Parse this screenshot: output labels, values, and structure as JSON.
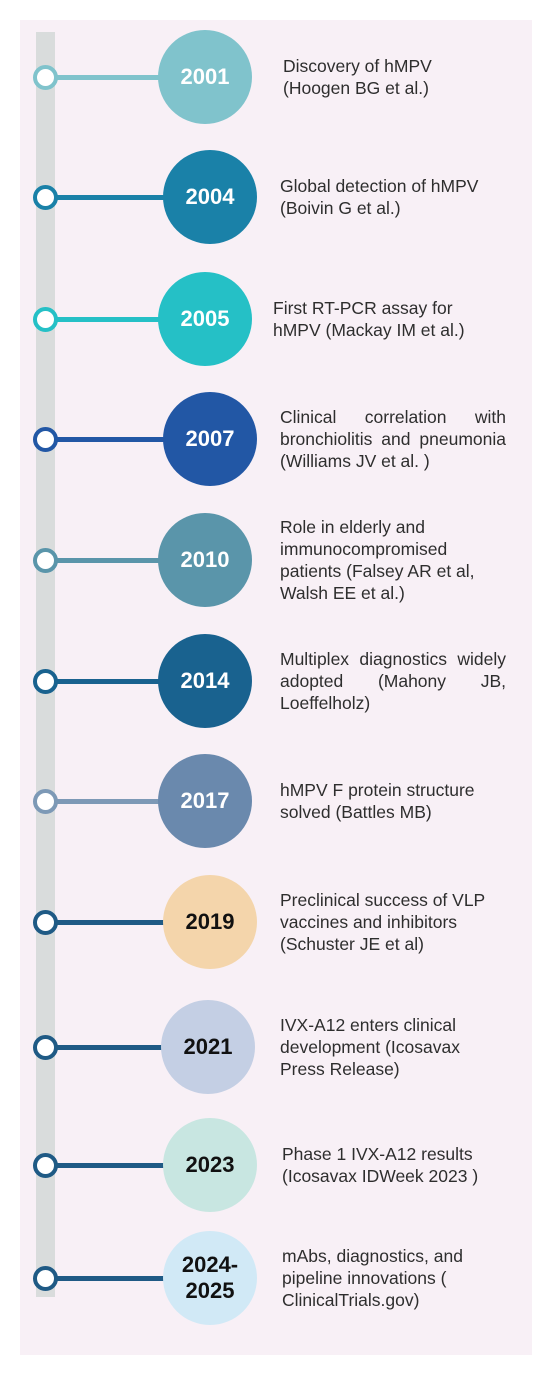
{
  "timeline": {
    "events": [
      {
        "year": "2001",
        "text": "Discovery of hMPV (Hoogen BG et al.)",
        "circle_color": "#80c3cc",
        "line_color": "#80c3cc",
        "year_color": "#ffffff"
      },
      {
        "year": "2004",
        "text": "Global detection of hMPV (Boivin G et al.)",
        "circle_color": "#1a81a8",
        "line_color": "#1a81a8",
        "year_color": "#ffffff"
      },
      {
        "year": "2005",
        "text": "First RT-PCR assay for hMPV (Mackay IM et al.)",
        "circle_color": "#25c0c6",
        "line_color": "#25c0c6",
        "year_color": "#ffffff"
      },
      {
        "year": "2007",
        "text": "Clinical correlation with bronchiolitis and pneumonia (Williams JV et al. )",
        "circle_color": "#2257a5",
        "line_color": "#2257a5",
        "year_color": "#ffffff"
      },
      {
        "year": "2010",
        "text": "Role in elderly and immunocompromised patients (Falsey AR et al, Walsh EE et al.)",
        "circle_color": "#5a95aa",
        "line_color": "#5a95aa",
        "year_color": "#ffffff"
      },
      {
        "year": "2014",
        "text": "Multiplex diagnostics widely adopted (Mahony JB, Loeffelholz)",
        "circle_color": "#19628f",
        "line_color": "#19628f",
        "year_color": "#ffffff"
      },
      {
        "year": "2017",
        "text": "hMPV F protein structure solved (Battles MB)",
        "circle_color": "#6a89ad",
        "line_color": "#7d99b6",
        "year_color": "#ffffff"
      },
      {
        "year": "2019",
        "text": "Preclinical success of VLP vaccines and inhibitors (Schuster JE et al)",
        "circle_color": "#f4d5ab",
        "line_color": "#1f5a85",
        "year_color": "#111111"
      },
      {
        "year": "2021",
        "text": "IVX-A12 enters clinical development (Icosavax Press Release)",
        "circle_color": "#c4cfe4",
        "line_color": "#1f5a85",
        "year_color": "#111111"
      },
      {
        "year": "2023",
        "text": "Phase 1 IVX-A12 results (Icosavax IDWeek 2023 )",
        "circle_color": "#c8e6e1",
        "line_color": "#1f5a85",
        "year_color": "#111111"
      },
      {
        "year": "2024-\n2025",
        "text": "mAbs, diagnostics, and pipeline innovations ( ClinicalTrials.gov)",
        "circle_color": "#d1e9f6",
        "line_color": "#1f5a85",
        "year_color": "#111111"
      }
    ]
  }
}
